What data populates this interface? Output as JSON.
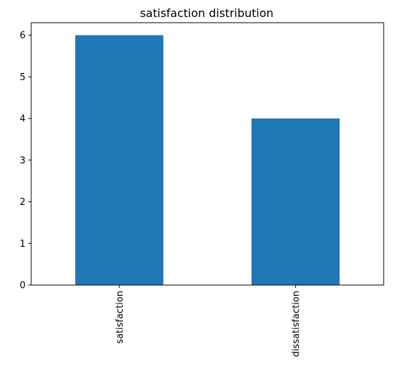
{
  "chart_data": {
    "type": "bar",
    "title": "satisfaction distribution",
    "categories": [
      "satisfaction",
      "dissatisfaction"
    ],
    "values": [
      6,
      4
    ],
    "xlabel": "",
    "ylabel": "",
    "ylim": [
      0,
      6.3
    ],
    "yticks": [
      0,
      1,
      2,
      3,
      4,
      5,
      6
    ],
    "bar_color": "#1f77b4",
    "grid": false,
    "legend": "none",
    "x_tick_rotation": "vertical"
  }
}
